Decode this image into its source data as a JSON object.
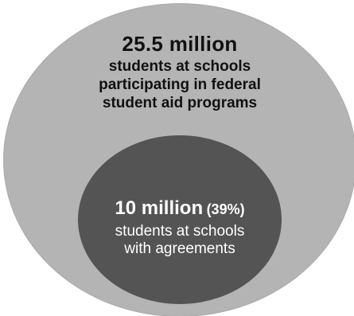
{
  "outer": {
    "value": "25.5 million",
    "lines": [
      "students at schools",
      "participating in federal",
      "student aid programs"
    ]
  },
  "inner": {
    "value": "10 million",
    "percent": "(39%)",
    "lines": [
      "students at schools",
      "with agreements"
    ]
  },
  "colors": {
    "outer_fill": "#b4b4b4",
    "inner_fill": "#545454",
    "outer_text": "#111111",
    "inner_text": "#ffffff"
  }
}
